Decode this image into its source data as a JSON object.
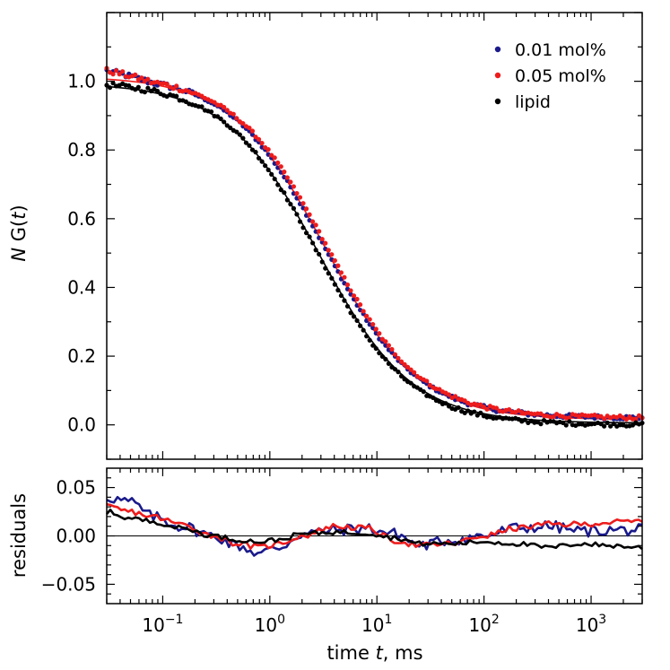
{
  "chart_data": [
    {
      "type": "scatter",
      "panel": "top",
      "xscale": "log",
      "xlim": [
        0.03,
        3000
      ],
      "ylim": [
        -0.1,
        1.2
      ],
      "xlabel_parts": [
        "time ",
        "t",
        ", ms"
      ],
      "ylabel_parts": [
        "N",
        " G(",
        "t",
        ")"
      ],
      "yticks": [
        0.0,
        0.2,
        0.4,
        0.6,
        0.8,
        1.0
      ],
      "ytick_labels": [
        "0.0",
        "0.2",
        "0.4",
        "0.6",
        "0.8",
        "1.0"
      ],
      "legend_placement": "top-right",
      "series": [
        {
          "name": "0.01 mol%",
          "color": "#1a1a8c",
          "model": {
            "tau_ms": 3.2,
            "offset": 0.02,
            "amp": 1.0
          }
        },
        {
          "name": "0.05 mol%",
          "color": "#ee1c1c",
          "model": {
            "tau_ms": 3.4,
            "offset": 0.02,
            "amp": 1.0
          }
        },
        {
          "name": "lipid",
          "color": "#000000",
          "model": {
            "tau_ms": 2.8,
            "offset": 0.0,
            "amp": 1.0
          }
        }
      ],
      "fit_lines": [
        {
          "color": "#000000",
          "tau_ms": 2.85,
          "offset": 0.005,
          "amp": 0.99
        },
        {
          "color": "#ee1c1c",
          "tau_ms": 3.3,
          "offset": 0.015,
          "amp": 1.0
        }
      ]
    },
    {
      "type": "line",
      "panel": "bottom",
      "xscale": "log",
      "xlim": [
        0.03,
        3000
      ],
      "ylim": [
        -0.07,
        0.07
      ],
      "ylabel": "residuals",
      "yticks": [
        -0.05,
        0.0,
        0.05
      ],
      "ytick_labels": [
        "−0.05",
        "0.00",
        "0.05"
      ],
      "xticks": [
        0.1,
        1,
        10,
        100,
        1000
      ],
      "xtick_labels": [
        [
          "10",
          "−1"
        ],
        [
          "10",
          "0"
        ],
        [
          "10",
          "1"
        ],
        [
          "10",
          "2"
        ],
        [
          "10",
          "3"
        ]
      ],
      "series": [
        {
          "name": "0.01 mol%",
          "color": "#1a1a8c",
          "points": [
            [
              0.03,
              0.04
            ],
            [
              0.05,
              0.035
            ],
            [
              0.08,
              0.02
            ],
            [
              0.15,
              0.01
            ],
            [
              0.3,
              0.0
            ],
            [
              0.5,
              -0.01
            ],
            [
              0.8,
              -0.018
            ],
            [
              1.2,
              -0.012
            ],
            [
              2,
              0.002
            ],
            [
              4,
              0.006
            ],
            [
              8,
              0.008
            ],
            [
              15,
              0.002
            ],
            [
              25,
              -0.01
            ],
            [
              50,
              -0.004
            ],
            [
              100,
              0.0
            ],
            [
              200,
              0.008
            ],
            [
              400,
              0.01
            ],
            [
              800,
              0.005
            ],
            [
              1500,
              0.006
            ],
            [
              3000,
              0.006
            ]
          ]
        },
        {
          "name": "0.05 mol%",
          "color": "#ee1c1c",
          "points": [
            [
              0.03,
              0.03
            ],
            [
              0.05,
              0.025
            ],
            [
              0.08,
              0.02
            ],
            [
              0.15,
              0.012
            ],
            [
              0.3,
              0.0
            ],
            [
              0.5,
              -0.008
            ],
            [
              0.8,
              -0.012
            ],
            [
              1.2,
              -0.008
            ],
            [
              2,
              0.0
            ],
            [
              4,
              0.01
            ],
            [
              8,
              0.008
            ],
            [
              15,
              -0.005
            ],
            [
              25,
              -0.01
            ],
            [
              50,
              -0.008
            ],
            [
              100,
              0.0
            ],
            [
              200,
              0.008
            ],
            [
              400,
              0.012
            ],
            [
              800,
              0.012
            ],
            [
              1500,
              0.014
            ],
            [
              3000,
              0.015
            ]
          ]
        },
        {
          "name": "lipid",
          "color": "#000000",
          "points": [
            [
              0.03,
              0.025
            ],
            [
              0.05,
              0.018
            ],
            [
              0.08,
              0.015
            ],
            [
              0.15,
              0.008
            ],
            [
              0.3,
              0.0
            ],
            [
              0.5,
              -0.004
            ],
            [
              0.8,
              -0.006
            ],
            [
              1.2,
              -0.004
            ],
            [
              2,
              0.002
            ],
            [
              4,
              0.004
            ],
            [
              8,
              0.003
            ],
            [
              15,
              -0.002
            ],
            [
              25,
              -0.008
            ],
            [
              50,
              -0.008
            ],
            [
              100,
              -0.006
            ],
            [
              200,
              -0.008
            ],
            [
              400,
              -0.012
            ],
            [
              800,
              -0.008
            ],
            [
              1500,
              -0.01
            ],
            [
              3000,
              -0.012
            ]
          ]
        }
      ]
    }
  ]
}
